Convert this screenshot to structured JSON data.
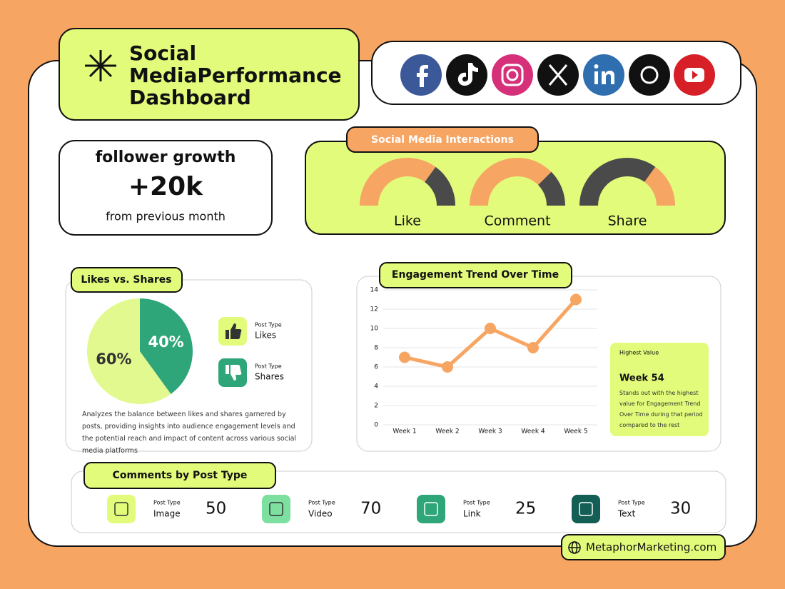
{
  "header": {
    "title_lines": [
      "Social",
      "MediaPerformance",
      "Dashboard"
    ]
  },
  "follower_growth": {
    "title": "follower growth",
    "value": "+20k",
    "subtitle": "from previous month"
  },
  "chart_data": [
    {
      "type": "gauge",
      "title": "Social Media Interactions",
      "categories": [
        "Like",
        "Comment",
        "Share"
      ],
      "values": [
        70,
        75,
        30
      ],
      "ylim": [
        0,
        100
      ],
      "fill_from": [
        "left",
        "left",
        "right"
      ],
      "color": "#f7a563",
      "track_color": "#4a4a4a"
    },
    {
      "type": "pie",
      "title": "Likes vs. Shares",
      "categories": [
        "Likes",
        "Shares"
      ],
      "values": [
        60,
        40
      ],
      "value_labels": [
        "60%",
        "40%"
      ],
      "colors": [
        "#e2f98f",
        "#2fa57a"
      ],
      "legend_caption": "Post Type",
      "description": "Analyzes the balance between likes and shares garnered by posts, providing insights into audience engagement levels and the potential reach and impact of content across various social media platforms"
    },
    {
      "type": "line",
      "title": "Engagement Trend Over Time",
      "categories": [
        "Week 1",
        "Week 2",
        "Week 3",
        "Week 4",
        "Week 5"
      ],
      "values": [
        7,
        6,
        10,
        8,
        13
      ],
      "color": "#f7a563",
      "ylim": [
        0,
        14
      ],
      "yticks": [
        0,
        2,
        4,
        6,
        8,
        10,
        12,
        14
      ],
      "grid": true,
      "annotation": {
        "heading": "Highest Value",
        "title": "Week 54",
        "text": "Stands out with the highest value for Engagement Trend Over Time during that period compared to the rest"
      }
    }
  ],
  "comments_by_post_type": {
    "title": "Comments by Post Type",
    "caption": "Post Type",
    "items": [
      {
        "label": "Image",
        "value": 50
      },
      {
        "label": "Video",
        "value": 70
      },
      {
        "label": "Link",
        "value": 25
      },
      {
        "label": "Text",
        "value": 30
      }
    ]
  },
  "footer": {
    "website": "MetaphorMarketing.com"
  }
}
